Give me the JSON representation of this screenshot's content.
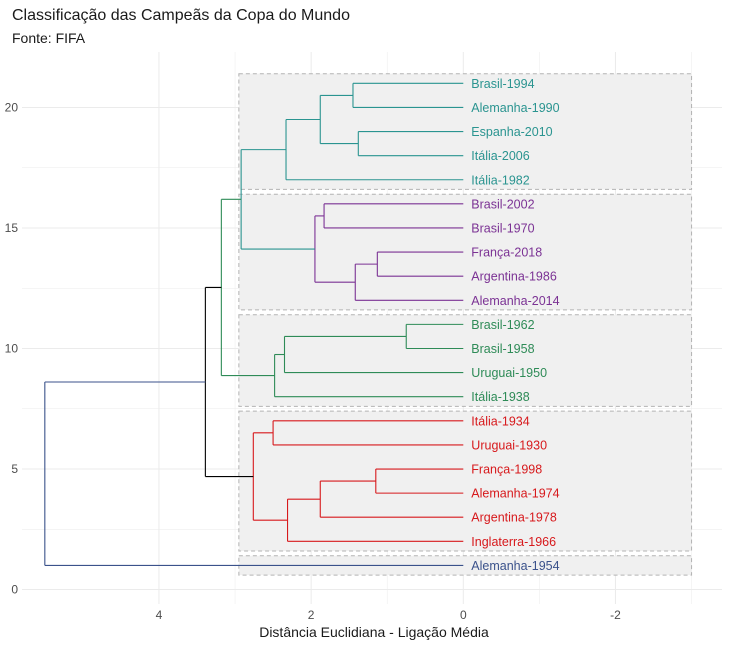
{
  "chart_data": {
    "type": "dendrogram",
    "title": "Classificação das Campeãs da Copa do Mundo",
    "subtitle": "Fonte: FIFA",
    "xlabel": "Distância Euclidiana - Ligação Média",
    "ylabel": "",
    "x_axis": {
      "ticks": [
        4,
        2,
        0,
        -2
      ],
      "range": [
        5.8,
        -3.4
      ],
      "reversed": true
    },
    "y_axis": {
      "ticks": [
        0,
        5,
        10,
        15,
        20
      ],
      "range": [
        -0.6,
        22.3
      ]
    },
    "grid": true,
    "leaves": [
      {
        "label": "Alemanha-1954",
        "pos": 1,
        "cluster": 5
      },
      {
        "label": "Inglaterra-1966",
        "pos": 2,
        "cluster": 1
      },
      {
        "label": "Argentina-1978",
        "pos": 3,
        "cluster": 1
      },
      {
        "label": "Alemanha-1974",
        "pos": 4,
        "cluster": 1
      },
      {
        "label": "França-1998",
        "pos": 5,
        "cluster": 1
      },
      {
        "label": "Uruguai-1930",
        "pos": 6,
        "cluster": 1
      },
      {
        "label": "Itália-1934",
        "pos": 7,
        "cluster": 1
      },
      {
        "label": "Itália-1938",
        "pos": 8,
        "cluster": 2
      },
      {
        "label": "Uruguai-1950",
        "pos": 9,
        "cluster": 2
      },
      {
        "label": "Brasil-1958",
        "pos": 10,
        "cluster": 2
      },
      {
        "label": "Brasil-1962",
        "pos": 11,
        "cluster": 2
      },
      {
        "label": "Alemanha-2014",
        "pos": 12,
        "cluster": 3
      },
      {
        "label": "Argentina-1986",
        "pos": 13,
        "cluster": 3
      },
      {
        "label": "França-2018",
        "pos": 14,
        "cluster": 3
      },
      {
        "label": "Brasil-1970",
        "pos": 15,
        "cluster": 3
      },
      {
        "label": "Brasil-2002",
        "pos": 16,
        "cluster": 3
      },
      {
        "label": "Itália-1982",
        "pos": 17,
        "cluster": 4
      },
      {
        "label": "Itália-2006",
        "pos": 18,
        "cluster": 4
      },
      {
        "label": "Espanha-2010",
        "pos": 19,
        "cluster": 4
      },
      {
        "label": "Alemanha-1990",
        "pos": 20,
        "cluster": 4
      },
      {
        "label": "Brasil-1994",
        "pos": 21,
        "cluster": 4
      }
    ],
    "merges": [
      {
        "a": [
          4
        ],
        "b": [
          5
        ],
        "height": 1.15,
        "cluster": 1
      },
      {
        "a": [
          3
        ],
        "b": [
          4,
          5
        ],
        "height": 1.88,
        "cluster": 1
      },
      {
        "a": [
          2
        ],
        "b": [
          3,
          4,
          5
        ],
        "height": 2.31,
        "cluster": 1
      },
      {
        "a": [
          6
        ],
        "b": [
          7
        ],
        "height": 2.5,
        "cluster": 1
      },
      {
        "a": [
          2,
          3,
          4,
          5
        ],
        "b": [
          6,
          7
        ],
        "height": 2.76,
        "cluster": 1
      },
      {
        "a": [
          10
        ],
        "b": [
          11
        ],
        "height": 0.75,
        "cluster": 2
      },
      {
        "a": [
          9
        ],
        "b": [
          10,
          11
        ],
        "height": 2.35,
        "cluster": 2
      },
      {
        "a": [
          8
        ],
        "b": [
          9,
          10,
          11
        ],
        "height": 2.48,
        "cluster": 2
      },
      {
        "a": [
          13
        ],
        "b": [
          14
        ],
        "height": 1.13,
        "cluster": 3
      },
      {
        "a": [
          12
        ],
        "b": [
          13,
          14
        ],
        "height": 1.42,
        "cluster": 3
      },
      {
        "a": [
          15
        ],
        "b": [
          16
        ],
        "height": 1.83,
        "cluster": 3
      },
      {
        "a": [
          12,
          13,
          14
        ],
        "b": [
          15,
          16
        ],
        "height": 1.95,
        "cluster": 3
      },
      {
        "a": [
          18
        ],
        "b": [
          19
        ],
        "height": 1.38,
        "cluster": 4
      },
      {
        "a": [
          20
        ],
        "b": [
          21
        ],
        "height": 1.45,
        "cluster": 4
      },
      {
        "a": [
          18,
          19
        ],
        "b": [
          20,
          21
        ],
        "height": 1.88,
        "cluster": 4
      },
      {
        "a": [
          17
        ],
        "b": [
          18,
          19,
          20,
          21
        ],
        "height": 2.33,
        "cluster": 4
      },
      {
        "a": [
          12,
          13,
          14,
          15,
          16
        ],
        "b": [
          17,
          18,
          19,
          20,
          21
        ],
        "height": 2.92,
        "cluster": 4
      },
      {
        "a": [
          8,
          9,
          10,
          11
        ],
        "b": [
          12,
          13,
          14,
          15,
          16,
          17,
          18,
          19,
          20,
          21
        ],
        "height": 3.18,
        "cluster": 2
      },
      {
        "a": [
          2,
          3,
          4,
          5,
          6,
          7
        ],
        "b": [
          8,
          9,
          10,
          11,
          12,
          13,
          14,
          15,
          16,
          17,
          18,
          19,
          20,
          21
        ],
        "height": 3.39,
        "cluster": 0
      },
      {
        "a": [
          1
        ],
        "b": [
          2,
          3,
          4,
          5,
          6,
          7,
          8,
          9,
          10,
          11,
          12,
          13,
          14,
          15,
          16,
          17,
          18,
          19,
          20,
          21
        ],
        "height": 5.5,
        "cluster": 5
      }
    ],
    "clusters": [
      {
        "id": 1,
        "color": "#d7191c",
        "from": 2,
        "to": 7
      },
      {
        "id": 2,
        "color": "#2e8b57",
        "from": 8,
        "to": 11
      },
      {
        "id": 3,
        "color": "#7b3294",
        "from": 12,
        "to": 16
      },
      {
        "id": 4,
        "color": "#2a9490",
        "from": 17,
        "to": 21
      },
      {
        "id": 5,
        "color": "#3b528b",
        "from": 1,
        "to": 1
      }
    ],
    "root_color": "#000000",
    "box_fill": "#f0f0f0",
    "box_stroke": "#b3b3b3"
  }
}
